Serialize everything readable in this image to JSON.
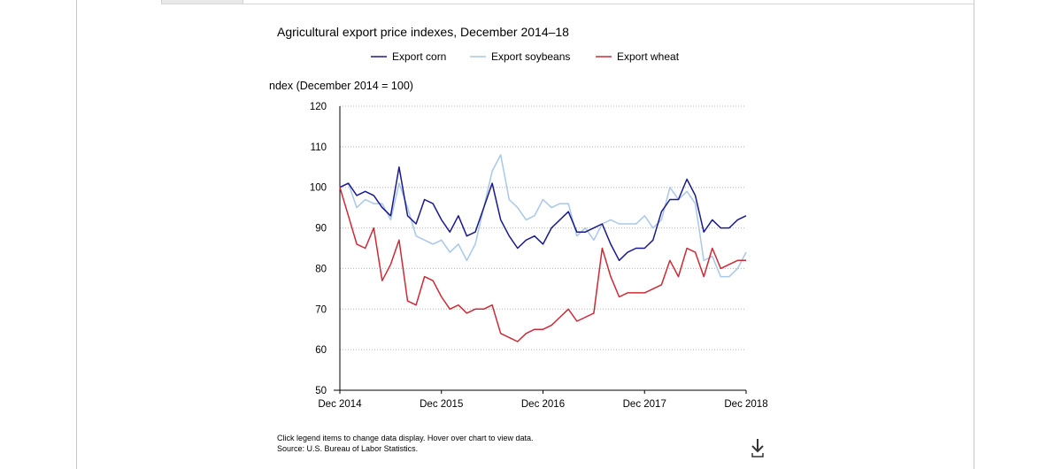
{
  "chart_data": {
    "type": "line",
    "title": "Agricultural export price indexes, December 2014–18",
    "ylabel": "ndex (December 2014 = 100)",
    "xlabel": "",
    "ylim": [
      50,
      120
    ],
    "yticks": [
      "50",
      "60",
      "70",
      "80",
      "90",
      "100",
      "110",
      "120"
    ],
    "xticks": [
      "Dec 2014",
      "Dec 2015",
      "Dec 2016",
      "Dec 2017",
      "Dec 2018"
    ],
    "grid": true,
    "legend_position": "top",
    "x": [
      "Dec 2014",
      "Jan 2015",
      "Feb 2015",
      "Mar 2015",
      "Apr 2015",
      "May 2015",
      "Jun 2015",
      "Jul 2015",
      "Aug 2015",
      "Sep 2015",
      "Oct 2015",
      "Nov 2015",
      "Dec 2015",
      "Jan 2016",
      "Feb 2016",
      "Mar 2016",
      "Apr 2016",
      "May 2016",
      "Jun 2016",
      "Jul 2016",
      "Aug 2016",
      "Sep 2016",
      "Oct 2016",
      "Nov 2016",
      "Dec 2016",
      "Jan 2017",
      "Feb 2017",
      "Mar 2017",
      "Apr 2017",
      "May 2017",
      "Jun 2017",
      "Jul 2017",
      "Aug 2017",
      "Sep 2017",
      "Oct 2017",
      "Nov 2017",
      "Dec 2017",
      "Jan 2018",
      "Feb 2018",
      "Mar 2018",
      "Apr 2018",
      "May 2018",
      "Jun 2018",
      "Jul 2018",
      "Aug 2018",
      "Sep 2018",
      "Oct 2018",
      "Nov 2018",
      "Dec 2018"
    ],
    "series": [
      {
        "name": "Export corn",
        "color": "#1a1a8c",
        "values": [
          100,
          101,
          98,
          99,
          98,
          95,
          93,
          105,
          93,
          91,
          97,
          96,
          92,
          89,
          93,
          88,
          89,
          95,
          101,
          92,
          88,
          85,
          87,
          88,
          86,
          90,
          92,
          94,
          89,
          89,
          90,
          91,
          86,
          82,
          84,
          85,
          85,
          87,
          94,
          97,
          97,
          102,
          98,
          89,
          92,
          90,
          90,
          92,
          93
        ]
      },
      {
        "name": "Export soybeans",
        "color": "#a9c7e8",
        "values": [
          100,
          101,
          95,
          97,
          96,
          96,
          92,
          101,
          95,
          88,
          87,
          86,
          87,
          84,
          86,
          82,
          86,
          95,
          104,
          108,
          97,
          95,
          92,
          93,
          97,
          95,
          96,
          96,
          88,
          90,
          87,
          91,
          92,
          91,
          91,
          91,
          93,
          90,
          92,
          100,
          97,
          99,
          96,
          82,
          83,
          78,
          78,
          80,
          84
        ]
      },
      {
        "name": "Export wheat",
        "color": "#cc2a36",
        "values": [
          100,
          93,
          86,
          85,
          90,
          77,
          81,
          87,
          72,
          71,
          78,
          77,
          73,
          70,
          71,
          69,
          70,
          70,
          71,
          64,
          63,
          62,
          64,
          65,
          65,
          66,
          68,
          70,
          67,
          68,
          69,
          85,
          78,
          73,
          74,
          74,
          74,
          75,
          76,
          82,
          78,
          85,
          84,
          78,
          85,
          80,
          81,
          82,
          82
        ]
      }
    ]
  },
  "footer": {
    "note": "Click legend items to change data display. Hover over chart to view data.",
    "source": "Source: U.S. Bureau of Labor Statistics."
  },
  "icons": {
    "download": "download-icon"
  }
}
